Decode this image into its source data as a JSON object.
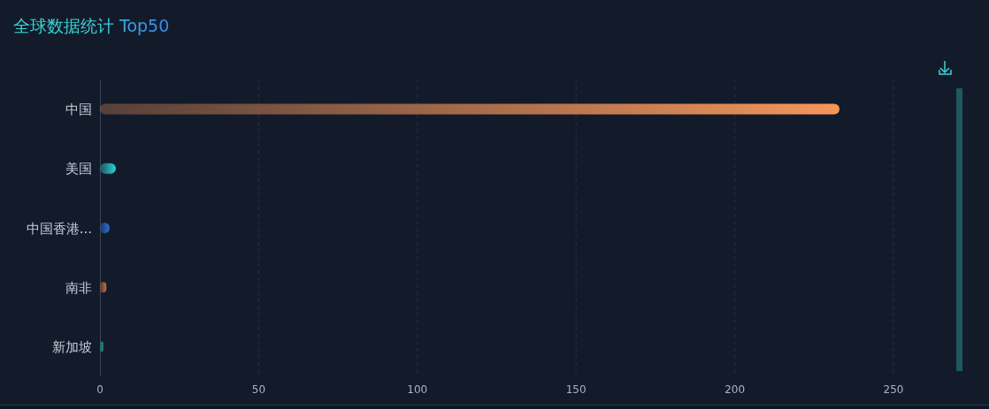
{
  "chart_data": {
    "type": "bar",
    "title": "全球数据统计 Top50",
    "orientation": "horizontal",
    "categories": [
      "中国",
      "美国",
      "中国香港...",
      "南非",
      "新加坡"
    ],
    "values": [
      233,
      5,
      3,
      2,
      1
    ],
    "colors": [
      "#f5965a",
      "#2ed3d6",
      "#2f6fd6",
      "#c8703f",
      "#1fa5a0"
    ],
    "xlim": [
      0,
      250
    ],
    "xticks": [
      0,
      50,
      100,
      150,
      200,
      250
    ],
    "grid": "x"
  }
}
